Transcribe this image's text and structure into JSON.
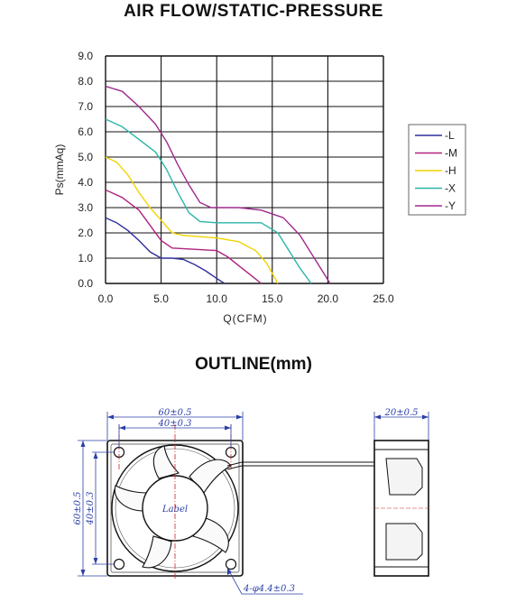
{
  "chart_title": "AIR FLOW/STATIC-PRESSURE",
  "outline_title": "OUTLINE(mm)",
  "chart_data": {
    "type": "line",
    "xlabel": "Q(CFM)",
    "ylabel": "Ps(mmAq)",
    "xlim": [
      0,
      25
    ],
    "ylim": [
      0,
      9
    ],
    "x_ticks": [
      "0.0",
      "5.0",
      "10.0",
      "15.0",
      "20.0",
      "25.0"
    ],
    "y_ticks": [
      "0.0",
      "1.0",
      "2.0",
      "3.0",
      "4.0",
      "5.0",
      "6.0",
      "7.0",
      "8.0",
      "9.0"
    ],
    "grid": true,
    "legend_position": "right",
    "series": [
      {
        "name": "L",
        "color": "#2e2e9c",
        "points": [
          [
            0,
            2.6
          ],
          [
            1,
            2.4
          ],
          [
            2,
            2.1
          ],
          [
            3,
            1.7
          ],
          [
            4,
            1.25
          ],
          [
            5,
            1.0
          ],
          [
            6,
            1.0
          ],
          [
            7,
            0.95
          ],
          [
            8,
            0.75
          ],
          [
            9,
            0.5
          ],
          [
            10,
            0.2
          ],
          [
            10.7,
            0
          ]
        ]
      },
      {
        "name": "M",
        "color": "#b0217d",
        "points": [
          [
            0,
            3.7
          ],
          [
            1.5,
            3.4
          ],
          [
            3,
            2.9
          ],
          [
            4,
            2.3
          ],
          [
            5,
            1.7
          ],
          [
            6,
            1.4
          ],
          [
            8,
            1.35
          ],
          [
            10,
            1.3
          ],
          [
            11,
            1.05
          ],
          [
            12,
            0.7
          ],
          [
            13,
            0.35
          ],
          [
            14,
            0
          ]
        ]
      },
      {
        "name": "H",
        "color": "#f2d400",
        "points": [
          [
            0,
            5.0
          ],
          [
            1,
            4.8
          ],
          [
            2,
            4.3
          ],
          [
            3,
            3.6
          ],
          [
            4,
            3.0
          ],
          [
            5,
            2.5
          ],
          [
            6,
            2.0
          ],
          [
            7,
            1.9
          ],
          [
            10,
            1.8
          ],
          [
            12,
            1.65
          ],
          [
            13.5,
            1.3
          ],
          [
            14.5,
            0.8
          ],
          [
            15.5,
            0
          ]
        ]
      },
      {
        "name": "X",
        "color": "#2ab5a8",
        "points": [
          [
            0,
            6.5
          ],
          [
            1.5,
            6.2
          ],
          [
            3,
            5.7
          ],
          [
            4.5,
            5.2
          ],
          [
            5.5,
            4.5
          ],
          [
            6.5,
            3.6
          ],
          [
            7.5,
            2.8
          ],
          [
            8.5,
            2.45
          ],
          [
            10,
            2.4
          ],
          [
            14,
            2.4
          ],
          [
            15.5,
            2.0
          ],
          [
            16.5,
            1.3
          ],
          [
            17.5,
            0.6
          ],
          [
            18.5,
            0
          ]
        ]
      },
      {
        "name": "Y",
        "color": "#9e2a8e",
        "points": [
          [
            0,
            7.8
          ],
          [
            1.5,
            7.6
          ],
          [
            3,
            7.0
          ],
          [
            4.5,
            6.3
          ],
          [
            5.5,
            5.6
          ],
          [
            6.5,
            4.7
          ],
          [
            7.5,
            3.9
          ],
          [
            8.5,
            3.2
          ],
          [
            9.5,
            3.0
          ],
          [
            12,
            3.0
          ],
          [
            14,
            2.9
          ],
          [
            16,
            2.6
          ],
          [
            17.5,
            1.9
          ],
          [
            18.5,
            1.2
          ],
          [
            19.5,
            0.5
          ],
          [
            20.2,
            0
          ]
        ]
      }
    ]
  },
  "diagram": {
    "dim_width_outer": "60±0.5",
    "dim_width_inner": "40±0.3",
    "dim_height_outer": "60±0.5",
    "dim_height_inner": "40±0.3",
    "dim_thickness": "20±0.5",
    "hole_callout": "4-φ4.4±0.3",
    "hub_label": "Label"
  },
  "colors": {
    "grid": "#111111",
    "dimension": "#2b3fa8",
    "centerline": "#d02020"
  }
}
